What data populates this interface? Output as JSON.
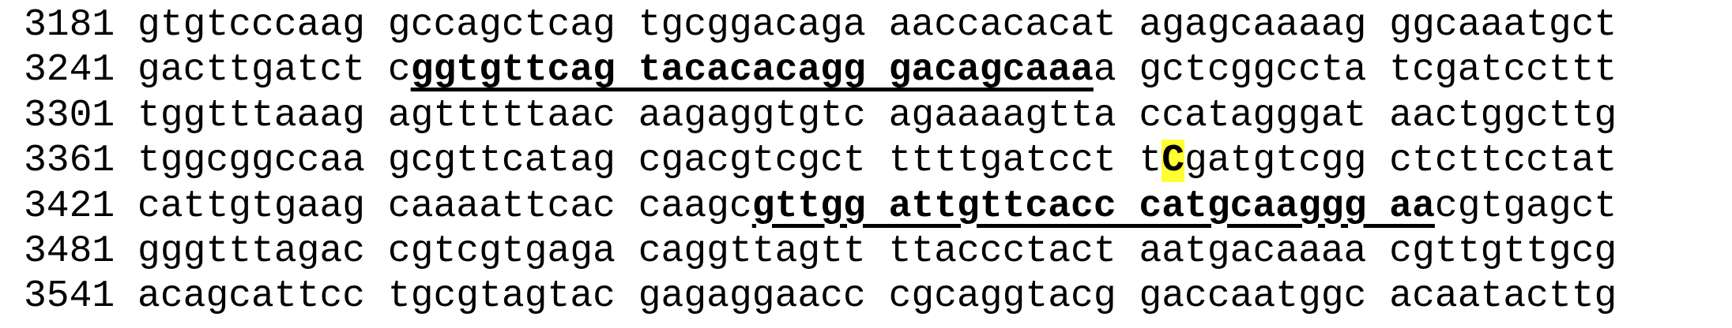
{
  "sequence": {
    "lines": [
      {
        "number": "3181",
        "segments": [
          {
            "text": "gtgtcccaag gccagctcag tgcggacaga aaccacacat agagcaaaag ggcaaatgct",
            "style": "plain"
          }
        ]
      },
      {
        "number": "3241",
        "segments": [
          {
            "text": "gacttgatct c",
            "style": "plain"
          },
          {
            "text": "ggtgttcag tacacacagg gacagcaaa",
            "style": "bold-underline"
          },
          {
            "text": "a gctcggccta tcgatccttt",
            "style": "plain"
          }
        ]
      },
      {
        "number": "3301",
        "segments": [
          {
            "text": "tggtttaaag agtttttaac aagaggtgtc agaaaagtta ccatagggat aactggcttg",
            "style": "plain"
          }
        ]
      },
      {
        "number": "3361",
        "segments": [
          {
            "text": "tggcggccaa gcgttcatag cgacgtcgct ttttgatcct t",
            "style": "plain"
          },
          {
            "text": "C",
            "style": "highlight"
          },
          {
            "text": "gatgtcgg ctcttcctat",
            "style": "plain"
          }
        ]
      },
      {
        "number": "3421",
        "segments": [
          {
            "text": "cattgtgaag caaaattcac caagc",
            "style": "plain"
          },
          {
            "text": "gttgg attgttcacc catgcaaggg aa",
            "style": "bold-underline"
          },
          {
            "text": "cgtgagct",
            "style": "plain"
          }
        ]
      },
      {
        "number": "3481",
        "segments": [
          {
            "text": "gggtttagac cgtcgtgaga caggttagtt ttaccctact aatgacaaaa cgttgttgcg",
            "style": "plain"
          }
        ]
      },
      {
        "number": "3541",
        "segments": [
          {
            "text": "acagcattcc tgcgtagtac gagaggaacc cgcaggtacg gaccaatggc acaatacttg",
            "style": "plain"
          }
        ]
      }
    ]
  },
  "colors": {
    "highlight": "#ffff33",
    "text": "#000000"
  }
}
